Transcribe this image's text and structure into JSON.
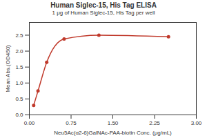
{
  "chart_data": {
    "type": "line",
    "title": "Human Siglec-15, His Tag ELISA",
    "subtitle": "1 μg of Human Siglec-15, His Tag per well",
    "x_label": "Neu5Ac(α2-6)GalNAc-PAA-biotin Conc. (μg/mL)",
    "y_label": "Mean Abs.(OD450)",
    "x": [
      0.078,
      0.156,
      0.3125,
      0.625,
      1.25,
      2.5
    ],
    "series": [
      {
        "name": "Human Siglec-15, His Tag",
        "color": "#c0392b",
        "marker": "circle",
        "values": [
          0.3,
          0.75,
          1.65,
          2.38,
          2.5,
          2.45
        ]
      }
    ],
    "xlim": [
      0,
      3
    ],
    "xticks": [
      {
        "value": 0,
        "label": "0.00"
      },
      {
        "value": 0.75,
        "label": "0.75"
      },
      {
        "value": 1.5,
        "label": "1.50"
      },
      {
        "value": 2.25,
        "label": "2.25"
      },
      {
        "value": 3,
        "label": "3.00"
      }
    ],
    "ylim": [
      0,
      2.9
    ],
    "yticks": [
      {
        "value": 0,
        "label": "0.0"
      },
      {
        "value": 0.5,
        "label": "0.5"
      },
      {
        "value": 1,
        "label": "1.0"
      },
      {
        "value": 1.5,
        "label": "1.5"
      },
      {
        "value": 2,
        "label": "2.0"
      },
      {
        "value": 2.5,
        "label": "2.5"
      }
    ],
    "grid": false
  }
}
